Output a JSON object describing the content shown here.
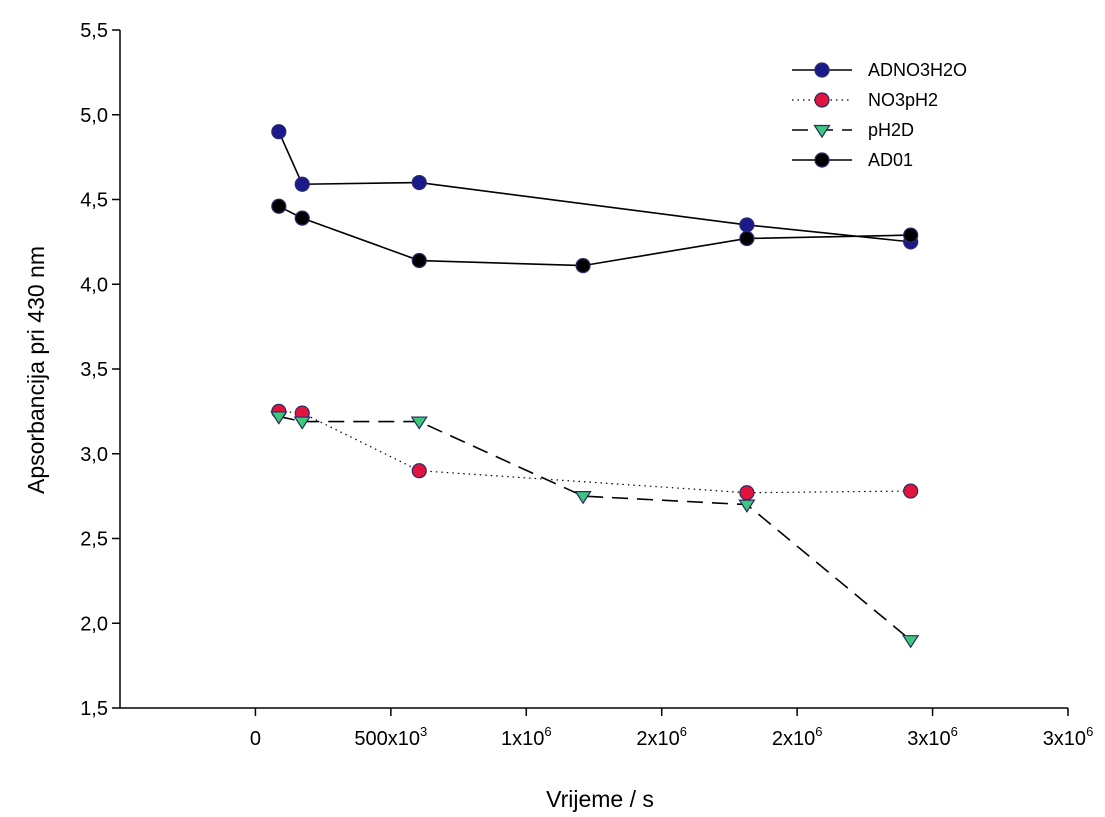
{
  "chart_data": {
    "type": "line",
    "title": "",
    "xlabel": "Vrijeme / s",
    "ylabel": "Apsorbancija pri 430 nm",
    "xlim": [
      -500000,
      3000000
    ],
    "ylim": [
      1.5,
      5.5
    ],
    "x_ticks": [
      0,
      500000,
      1000000,
      1500000,
      2000000,
      2500000,
      3000000
    ],
    "x_tick_labels": [
      {
        "base": "0",
        "exp": ""
      },
      {
        "base": "500x10",
        "exp": "3"
      },
      {
        "base": "1x10",
        "exp": "6"
      },
      {
        "base": "2x10",
        "exp": "6"
      },
      {
        "base": "2x10",
        "exp": "6"
      },
      {
        "base": "3x10",
        "exp": "6"
      },
      {
        "base": "3x10",
        "exp": "6"
      }
    ],
    "y_ticks": [
      1.5,
      2.0,
      2.5,
      3.0,
      3.5,
      4.0,
      4.5,
      5.0,
      5.5
    ],
    "y_tick_labels": [
      "1,5",
      "2,0",
      "2,5",
      "3,0",
      "3,5",
      "4,0",
      "4,5",
      "5,0",
      "5,5"
    ],
    "grid": false,
    "legend_position": "top-right",
    "series": [
      {
        "name": "ADNO3H2O",
        "line": "solid",
        "marker": "circle",
        "marker_fill": "#1a1a8c",
        "x": [
          86400,
          172800,
          604800,
          1814400,
          2419200
        ],
        "y": [
          4.9,
          4.59,
          4.6,
          4.35,
          4.25
        ]
      },
      {
        "name": "NO3pH2",
        "line": "dotted",
        "marker": "circle",
        "marker_fill": "#e0143c",
        "x": [
          86400,
          172800,
          604800,
          1814400,
          2419200
        ],
        "y": [
          3.25,
          3.24,
          2.9,
          2.77,
          2.78
        ]
      },
      {
        "name": "pH2D",
        "line": "dashed",
        "marker": "triangle-down",
        "marker_fill": "#3cc878",
        "x": [
          86400,
          172800,
          604800,
          1209600,
          1814400,
          2419200
        ],
        "y": [
          3.22,
          3.19,
          3.19,
          2.75,
          2.7,
          1.9
        ]
      },
      {
        "name": "AD01",
        "line": "solid",
        "marker": "circle",
        "marker_fill": "#000000",
        "x": [
          86400,
          172800,
          604800,
          1209600,
          1814400,
          2419200
        ],
        "y": [
          4.46,
          4.39,
          4.14,
          4.11,
          4.27,
          4.29
        ]
      }
    ]
  }
}
